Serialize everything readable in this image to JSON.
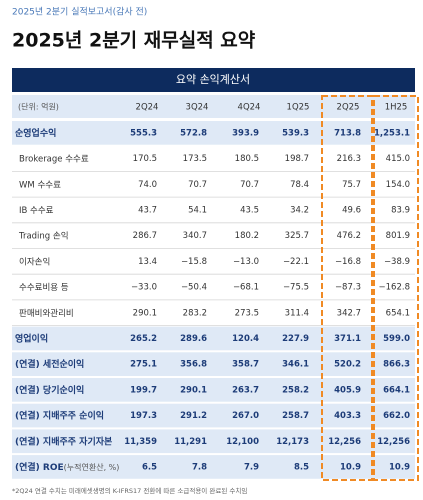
{
  "header": {
    "subtitle": "2025년 2분기 실적보고서(감사 전)",
    "title": "2025년 2분기 재무실적 요약"
  },
  "table": {
    "title": "요약 손익계산서",
    "unit": "(단위: 억원)",
    "columns": [
      "2Q24",
      "3Q24",
      "4Q24",
      "1Q25",
      "2Q25",
      "1H25"
    ],
    "rows": [
      {
        "label": "순영업수익",
        "values": [
          "555.3",
          "572.8",
          "393.9",
          "539.3",
          "713.8",
          "1,253.1"
        ]
      },
      {
        "label": "Brokerage 수수료",
        "values": [
          "170.5",
          "173.5",
          "180.5",
          "198.7",
          "216.3",
          "415.0"
        ]
      },
      {
        "label": "WM 수수료",
        "values": [
          "74.0",
          "70.7",
          "70.7",
          "78.4",
          "75.7",
          "154.0"
        ]
      },
      {
        "label": "IB 수수료",
        "values": [
          "43.7",
          "54.1",
          "43.5",
          "34.2",
          "49.6",
          "83.9"
        ]
      },
      {
        "label": "Trading 손익",
        "values": [
          "286.7",
          "340.7",
          "180.2",
          "325.7",
          "476.2",
          "801.9"
        ]
      },
      {
        "label": "이자손익",
        "values": [
          "13.4",
          "−15.8",
          "−13.0",
          "−22.1",
          "−16.8",
          "−38.9"
        ]
      },
      {
        "label": "수수료비용 등",
        "values": [
          "−33.0",
          "−50.4",
          "−68.1",
          "−75.5",
          "−87.3",
          "−162.8"
        ]
      },
      {
        "label": "판매비와관리비",
        "values": [
          "290.1",
          "283.2",
          "273.5",
          "311.4",
          "342.7",
          "654.1"
        ]
      },
      {
        "label": "영업이익",
        "values": [
          "265.2",
          "289.6",
          "120.4",
          "227.9",
          "371.1",
          "599.0"
        ]
      },
      {
        "label": "(연결) 세전순이익",
        "values": [
          "275.1",
          "356.8",
          "358.7",
          "346.1",
          "520.2",
          "866.3"
        ]
      },
      {
        "label": "(연결) 당기순이익",
        "values": [
          "199.7",
          "290.1",
          "263.7",
          "258.2",
          "405.9",
          "664.1"
        ]
      },
      {
        "label": "(연결) 지배주주 순이익",
        "values": [
          "197.3",
          "291.2",
          "267.0",
          "258.7",
          "403.3",
          "662.0"
        ]
      },
      {
        "label": "(연결) 지배주주 자기자본",
        "values": [
          "11,359",
          "11,291",
          "12,100",
          "12,173",
          "12,256",
          "12,256"
        ]
      },
      {
        "label": "(연결) ROE",
        "label_note": "(누적연환산, %)",
        "values": [
          "6.5",
          "7.8",
          "7.9",
          "8.5",
          "10.9",
          "10.9"
        ]
      }
    ]
  },
  "footnote": "*2Q24 연결 수치는 미래에셋생명의 K-IFRS17 전환에 따른 소급적용이 완료된 수치임"
}
